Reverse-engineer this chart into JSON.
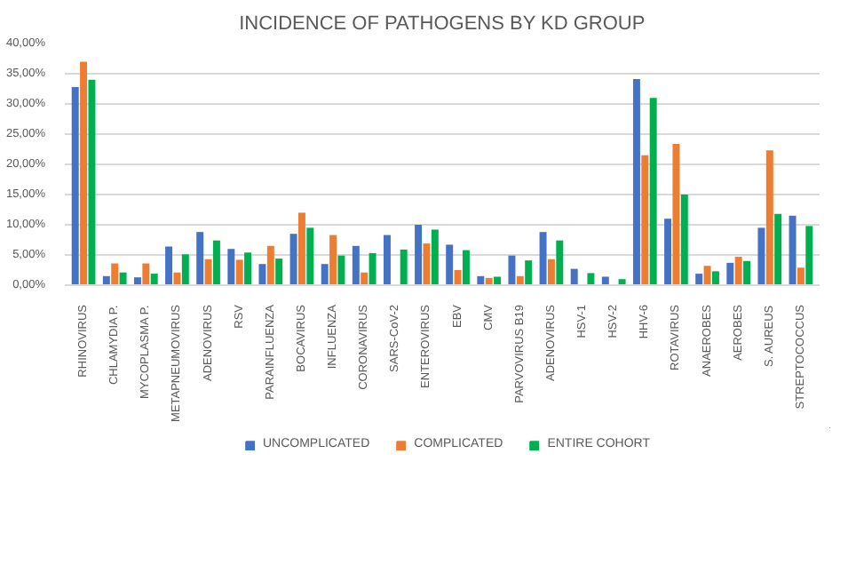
{
  "chart_data": {
    "type": "bar",
    "title": "INCIDENCE OF PATHOGENS BY KD GROUP",
    "categories": [
      "RHINOVIRUS",
      "CHLAMYDIA P.",
      "MYCOPLASMA P.",
      "METAPNEUMOVIRUS",
      "ADENOVIRUS",
      "RSV",
      "PARAINFLUENZA",
      "BOCAVIRUS",
      "INFLUENZA",
      "CORONAVIRUS",
      "SARS-CoV-2",
      "ENTEROVIRUS",
      "EBV",
      "CMV",
      "PARVOVIRUS B19",
      "ADENOVIRUS",
      "HSV-1",
      "HSV-2",
      "HHV-6",
      "ROTAVIRUS",
      "ANAEROBES",
      "AEROBES",
      "S. AUREUS",
      "STREPTOCOCCUS"
    ],
    "series": [
      {
        "name": "UNCOMPLICATED",
        "color": "#4472c4",
        "values": [
          32.8,
          1.5,
          1.3,
          6.4,
          8.8,
          6.0,
          3.5,
          8.5,
          3.5,
          6.5,
          8.3,
          10.0,
          6.7,
          1.5,
          4.9,
          8.8,
          2.7,
          1.4,
          34.1,
          11.0,
          1.9,
          3.7,
          9.5,
          11.5
        ]
      },
      {
        "name": "COMPLICATED",
        "color": "#ed7d31",
        "values": [
          37.0,
          3.6,
          3.6,
          2.1,
          4.3,
          4.2,
          6.5,
          12.0,
          8.3,
          2.1,
          0,
          6.9,
          2.5,
          1.2,
          1.5,
          4.3,
          0,
          0,
          21.5,
          23.4,
          3.2,
          4.7,
          22.3,
          2.9
        ]
      },
      {
        "name": "ENTIRE COHORT",
        "color": "#00b050",
        "values": [
          34.0,
          2.1,
          1.9,
          5.1,
          7.4,
          5.4,
          4.4,
          9.5,
          4.9,
          5.3,
          5.9,
          9.2,
          5.8,
          1.4,
          4.1,
          7.4,
          2.0,
          1.0,
          31.0,
          15.0,
          2.3,
          4.0,
          11.8,
          9.8
        ]
      }
    ],
    "ylim": [
      0,
      40
    ],
    "yticks": [
      {
        "value": 0,
        "label": "0,00%"
      },
      {
        "value": 5,
        "label": "5,00%"
      },
      {
        "value": 10,
        "label": "10,00%"
      },
      {
        "value": 15,
        "label": "15,00%"
      },
      {
        "value": 20,
        "label": "20,00%"
      },
      {
        "value": 25,
        "label": "25,00%"
      },
      {
        "value": 30,
        "label": "30,00%"
      },
      {
        "value": 35,
        "label": "35,00%"
      },
      {
        "value": 40,
        "label": "40,00%"
      }
    ],
    "grid": "y",
    "legend": "bottom"
  }
}
